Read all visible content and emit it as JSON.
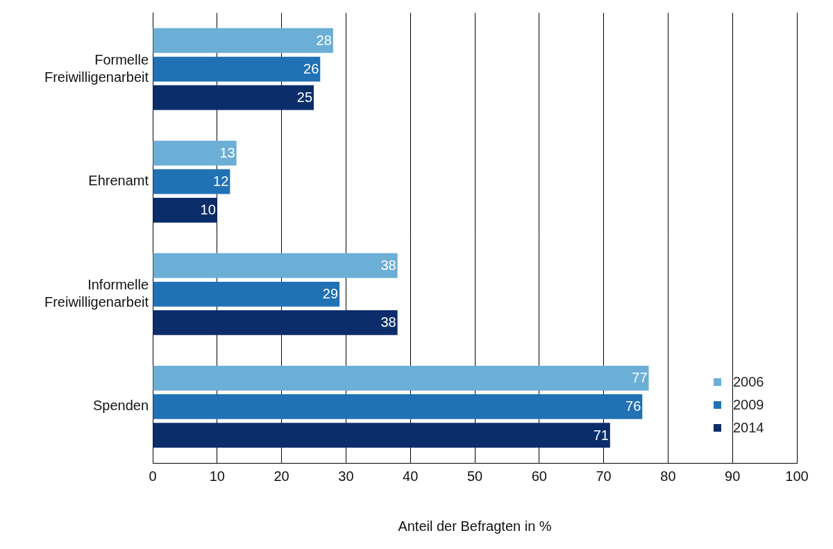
{
  "chart_data": {
    "type": "bar",
    "orientation": "horizontal",
    "categories": [
      "Formelle Freiwilligenarbeit",
      "Ehrenamt",
      "Informelle Freiwilligenarbeit",
      "Spenden"
    ],
    "series": [
      {
        "name": "2006",
        "color": "#6baed6",
        "values": [
          28,
          13,
          38,
          77
        ]
      },
      {
        "name": "2009",
        "color": "#2171b5",
        "values": [
          26,
          12,
          29,
          76
        ]
      },
      {
        "name": "2014",
        "color": "#0b2e6b",
        "values": [
          25,
          10,
          38,
          71
        ]
      }
    ],
    "xlabel": "Anteil der Befragten in %",
    "xlim": [
      0,
      100
    ],
    "xticks": [
      0,
      10,
      20,
      30,
      40,
      50,
      60,
      70,
      80,
      90,
      100
    ],
    "grid": true,
    "legend": "lower right",
    "data_labels": true
  }
}
